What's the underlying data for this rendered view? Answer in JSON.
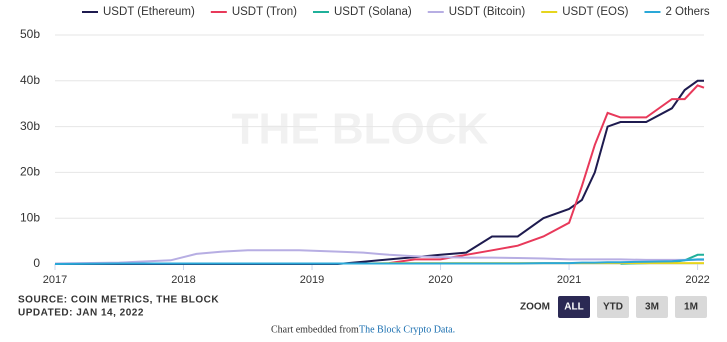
{
  "chart_data": {
    "type": "line",
    "watermark": "THE BLOCK",
    "x": [
      2017,
      2017.5,
      2017.9,
      2018.1,
      2018.3,
      2018.5,
      2018.9,
      2019.2,
      2019.4,
      2019.6,
      2019.8,
      2020.0,
      2020.2,
      2020.4,
      2020.6,
      2020.8,
      2021.0,
      2021.1,
      2021.2,
      2021.3,
      2021.4,
      2021.6,
      2021.8,
      2021.9,
      2022.0,
      2022.05
    ],
    "series": [
      {
        "name": "USDT (Ethereum)",
        "color": "#1e1b4f",
        "values": [
          0,
          0,
          0,
          0,
          0,
          0,
          0,
          0,
          0.5,
          1,
          1.5,
          2,
          2.5,
          6,
          6,
          10,
          12,
          14,
          20,
          30,
          31,
          31,
          34,
          38,
          40,
          40
        ]
      },
      {
        "name": "USDT (Tron)",
        "color": "#e8395a",
        "values": [
          null,
          null,
          null,
          null,
          null,
          null,
          null,
          null,
          null,
          0.2,
          1,
          1,
          2,
          3,
          4,
          6,
          9,
          17,
          26,
          33,
          32,
          32,
          36,
          36,
          39,
          38.5
        ]
      },
      {
        "name": "USDT (Solana)",
        "color": "#1fb09a",
        "values": [
          null,
          null,
          null,
          null,
          null,
          null,
          null,
          null,
          null,
          null,
          null,
          null,
          null,
          null,
          null,
          null,
          null,
          null,
          null,
          null,
          0.05,
          0.2,
          0.4,
          0.8,
          2,
          2
        ]
      },
      {
        "name": "USDT (Bitcoin)",
        "color": "#b7aee3",
        "values": [
          0.1,
          0.3,
          0.8,
          2.2,
          2.7,
          3.0,
          3.0,
          2.7,
          2.5,
          2.0,
          1.7,
          1.5,
          1.4,
          1.4,
          1.3,
          1.2,
          1.0,
          1.0,
          1.0,
          1.0,
          1.0,
          0.9,
          0.9,
          0.9,
          0.9,
          0.9
        ]
      },
      {
        "name": "USDT (EOS)",
        "color": "#e6d51e",
        "values": [
          null,
          null,
          null,
          null,
          null,
          null,
          null,
          null,
          0.1,
          0.2,
          0.2,
          0.2,
          0.2,
          0.2,
          0.2,
          0.2,
          0.2,
          0.2,
          0.2,
          0.2,
          0.2,
          0.2,
          0.2,
          0.2,
          0.2,
          0.2
        ]
      },
      {
        "name": "2 Others",
        "color": "#2aa8d8",
        "values": [
          0,
          0.1,
          0.1,
          0.1,
          0.1,
          0.1,
          0.1,
          0.1,
          0.1,
          0.1,
          0.1,
          0.1,
          0.1,
          0.1,
          0.1,
          0.2,
          0.2,
          0.3,
          0.3,
          0.4,
          0.4,
          0.5,
          0.6,
          0.8,
          1,
          1
        ]
      }
    ],
    "xlim": [
      2017,
      2022.05
    ],
    "xticks": [
      2017,
      2018,
      2019,
      2020,
      2021,
      2022
    ],
    "ylim": [
      0,
      50
    ],
    "yticks": [
      {
        "value": 0,
        "label": "0"
      },
      {
        "value": 10,
        "label": "10b"
      },
      {
        "value": 20,
        "label": "20b"
      },
      {
        "value": 30,
        "label": "30b"
      },
      {
        "value": 40,
        "label": "40b"
      },
      {
        "value": 50,
        "label": "50b"
      }
    ],
    "grid": true,
    "legend": "top",
    "source": "SOURCE: COIN METRICS, THE BLOCK",
    "updated": "UPDATED: JAN 14, 2022",
    "zoom_label": "ZOOM",
    "zoom_buttons": [
      "ALL",
      "YTD",
      "3M",
      "1M"
    ],
    "footer_text": "Chart embedded from",
    "footer_link": "The Block Crypto Data."
  }
}
